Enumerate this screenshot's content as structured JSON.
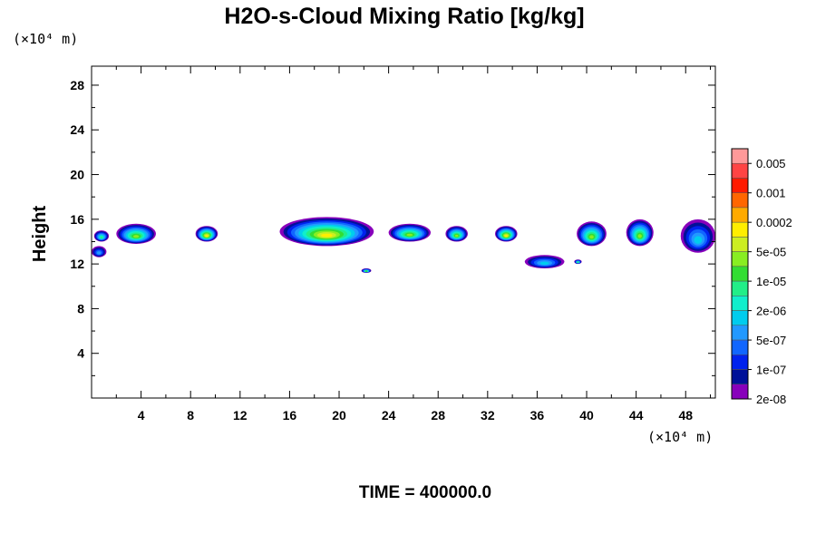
{
  "chart_data": {
    "type": "heatmap",
    "title": "H2O-s-Cloud Mixing Ratio [kg/kg]",
    "ylabel": "Height",
    "x_unit_label": "(×10⁴ m)",
    "y_unit_label": "(×10⁴ m)",
    "xlim": [
      0,
      50.4
    ],
    "ylim": [
      0,
      29.7
    ],
    "x_ticks": [
      4,
      8,
      12,
      16,
      20,
      24,
      28,
      32,
      36,
      40,
      44,
      48
    ],
    "y_ticks": [
      4,
      8,
      12,
      16,
      20,
      24,
      28
    ],
    "time_label": "TIME = 400000.0",
    "colorbar": {
      "labels": [
        "0.005",
        "0.001",
        "0.0002",
        "5e-05",
        "1e-05",
        "2e-06",
        "5e-07",
        "1e-07",
        "2e-08"
      ],
      "colors": [
        "#ff9999",
        "#ff4444",
        "#ff1a00",
        "#ff6600",
        "#ffaa00",
        "#ffee00",
        "#ccee22",
        "#88ee22",
        "#33dd33",
        "#22ee88",
        "#11eecc",
        "#00ccee",
        "#2299ff",
        "#1166ff",
        "#0022ee",
        "#001199",
        "#8800bb"
      ]
    },
    "cloud_regions": [
      {
        "x": [
          0.2,
          1.4
        ],
        "y": [
          14.0,
          15.0
        ],
        "peak": 7
      },
      {
        "x": [
          0.0,
          1.2
        ],
        "y": [
          12.6,
          13.6
        ],
        "peak": 4
      },
      {
        "x": [
          2.0,
          5.2
        ],
        "y": [
          13.8,
          15.6
        ],
        "peak": 9
      },
      {
        "x": [
          8.4,
          10.2
        ],
        "y": [
          14.0,
          15.4
        ],
        "peak": 11
      },
      {
        "x": [
          15.2,
          22.8
        ],
        "y": [
          13.6,
          16.2
        ],
        "peak": 11
      },
      {
        "x": [
          24.0,
          27.4
        ],
        "y": [
          14.0,
          15.6
        ],
        "peak": 9
      },
      {
        "x": [
          28.6,
          30.4
        ],
        "y": [
          14.0,
          15.4
        ],
        "peak": 9
      },
      {
        "x": [
          32.6,
          34.4
        ],
        "y": [
          14.0,
          15.4
        ],
        "peak": 11
      },
      {
        "x": [
          39.2,
          41.6
        ],
        "y": [
          13.6,
          15.8
        ],
        "peak": 9
      },
      {
        "x": [
          43.2,
          45.4
        ],
        "y": [
          13.6,
          16.0
        ],
        "peak": 9
      },
      {
        "x": [
          47.6,
          50.4
        ],
        "y": [
          13.0,
          16.0
        ],
        "peak": 5
      },
      {
        "x": [
          35.0,
          38.2
        ],
        "y": [
          11.6,
          12.8
        ],
        "peak": 5
      },
      {
        "x": [
          21.8,
          22.6
        ],
        "y": [
          11.2,
          11.6
        ],
        "peak": 8
      },
      {
        "x": [
          39.0,
          39.6
        ],
        "y": [
          12.0,
          12.4
        ],
        "peak": 7
      }
    ]
  }
}
